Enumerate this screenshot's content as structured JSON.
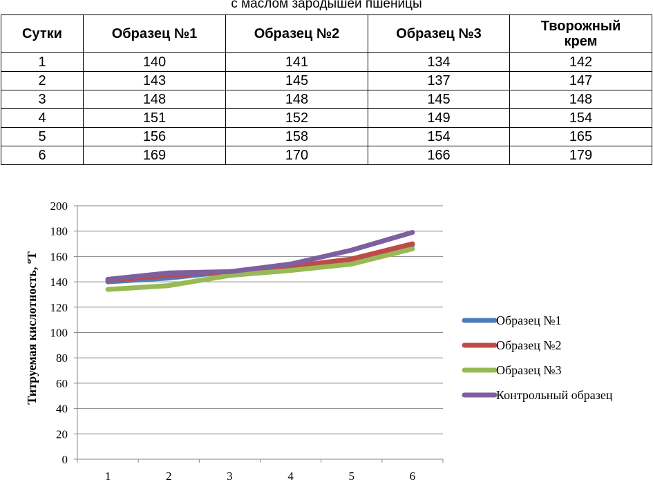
{
  "caption": "с маслом зародышей пшеницы",
  "table": {
    "headers": [
      "Сутки",
      "Образец №1",
      "Образец №2",
      "Образец №3",
      "Творожный крем"
    ],
    "rows": [
      [
        "1",
        "140",
        "141",
        "134",
        "142"
      ],
      [
        "2",
        "143",
        "145",
        "137",
        "147"
      ],
      [
        "3",
        "148",
        "148",
        "145",
        "148"
      ],
      [
        "4",
        "151",
        "152",
        "149",
        "154"
      ],
      [
        "5",
        "156",
        "158",
        "154",
        "165"
      ],
      [
        "6",
        "169",
        "170",
        "166",
        "179"
      ]
    ]
  },
  "chart_data": {
    "type": "line",
    "title": "",
    "xlabel": "",
    "ylabel": "Титруемая кислотность, ºТ",
    "categories": [
      "1",
      "2",
      "3",
      "4",
      "5",
      "6"
    ],
    "ylim": [
      0,
      200
    ],
    "yticks": [
      "0",
      "20",
      "40",
      "60",
      "80",
      "100",
      "120",
      "140",
      "160",
      "180",
      "200"
    ],
    "grid": true,
    "legend_position": "right",
    "series": [
      {
        "name": "Образец №1",
        "color": "#4A7EBB",
        "values": [
          140,
          143,
          148,
          151,
          156,
          169
        ]
      },
      {
        "name": "Образец №2",
        "color": "#BE4B48",
        "values": [
          141,
          145,
          148,
          152,
          158,
          170
        ]
      },
      {
        "name": "Образец №3",
        "color": "#98B954",
        "values": [
          134,
          137,
          145,
          149,
          154,
          166
        ]
      },
      {
        "name": "Контрольный образец",
        "color": "#7D60A0",
        "values": [
          142,
          147,
          148,
          154,
          165,
          179
        ]
      }
    ]
  }
}
